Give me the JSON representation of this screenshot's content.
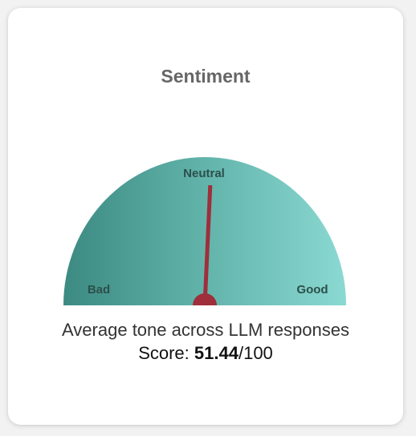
{
  "chart_data": {
    "type": "gauge",
    "title": "Sentiment",
    "labels": [
      "Bad",
      "Neutral",
      "Good"
    ],
    "value": 51.44,
    "lim": [
      0,
      100
    ],
    "caption": "Average tone across LLM responses",
    "score_prefix": "Score:",
    "score_suffix": "/100",
    "colors": [
      "#3c8a82",
      "#62b4ab",
      "#8ad9d2"
    ],
    "needle_color": "#9e2f3b"
  }
}
